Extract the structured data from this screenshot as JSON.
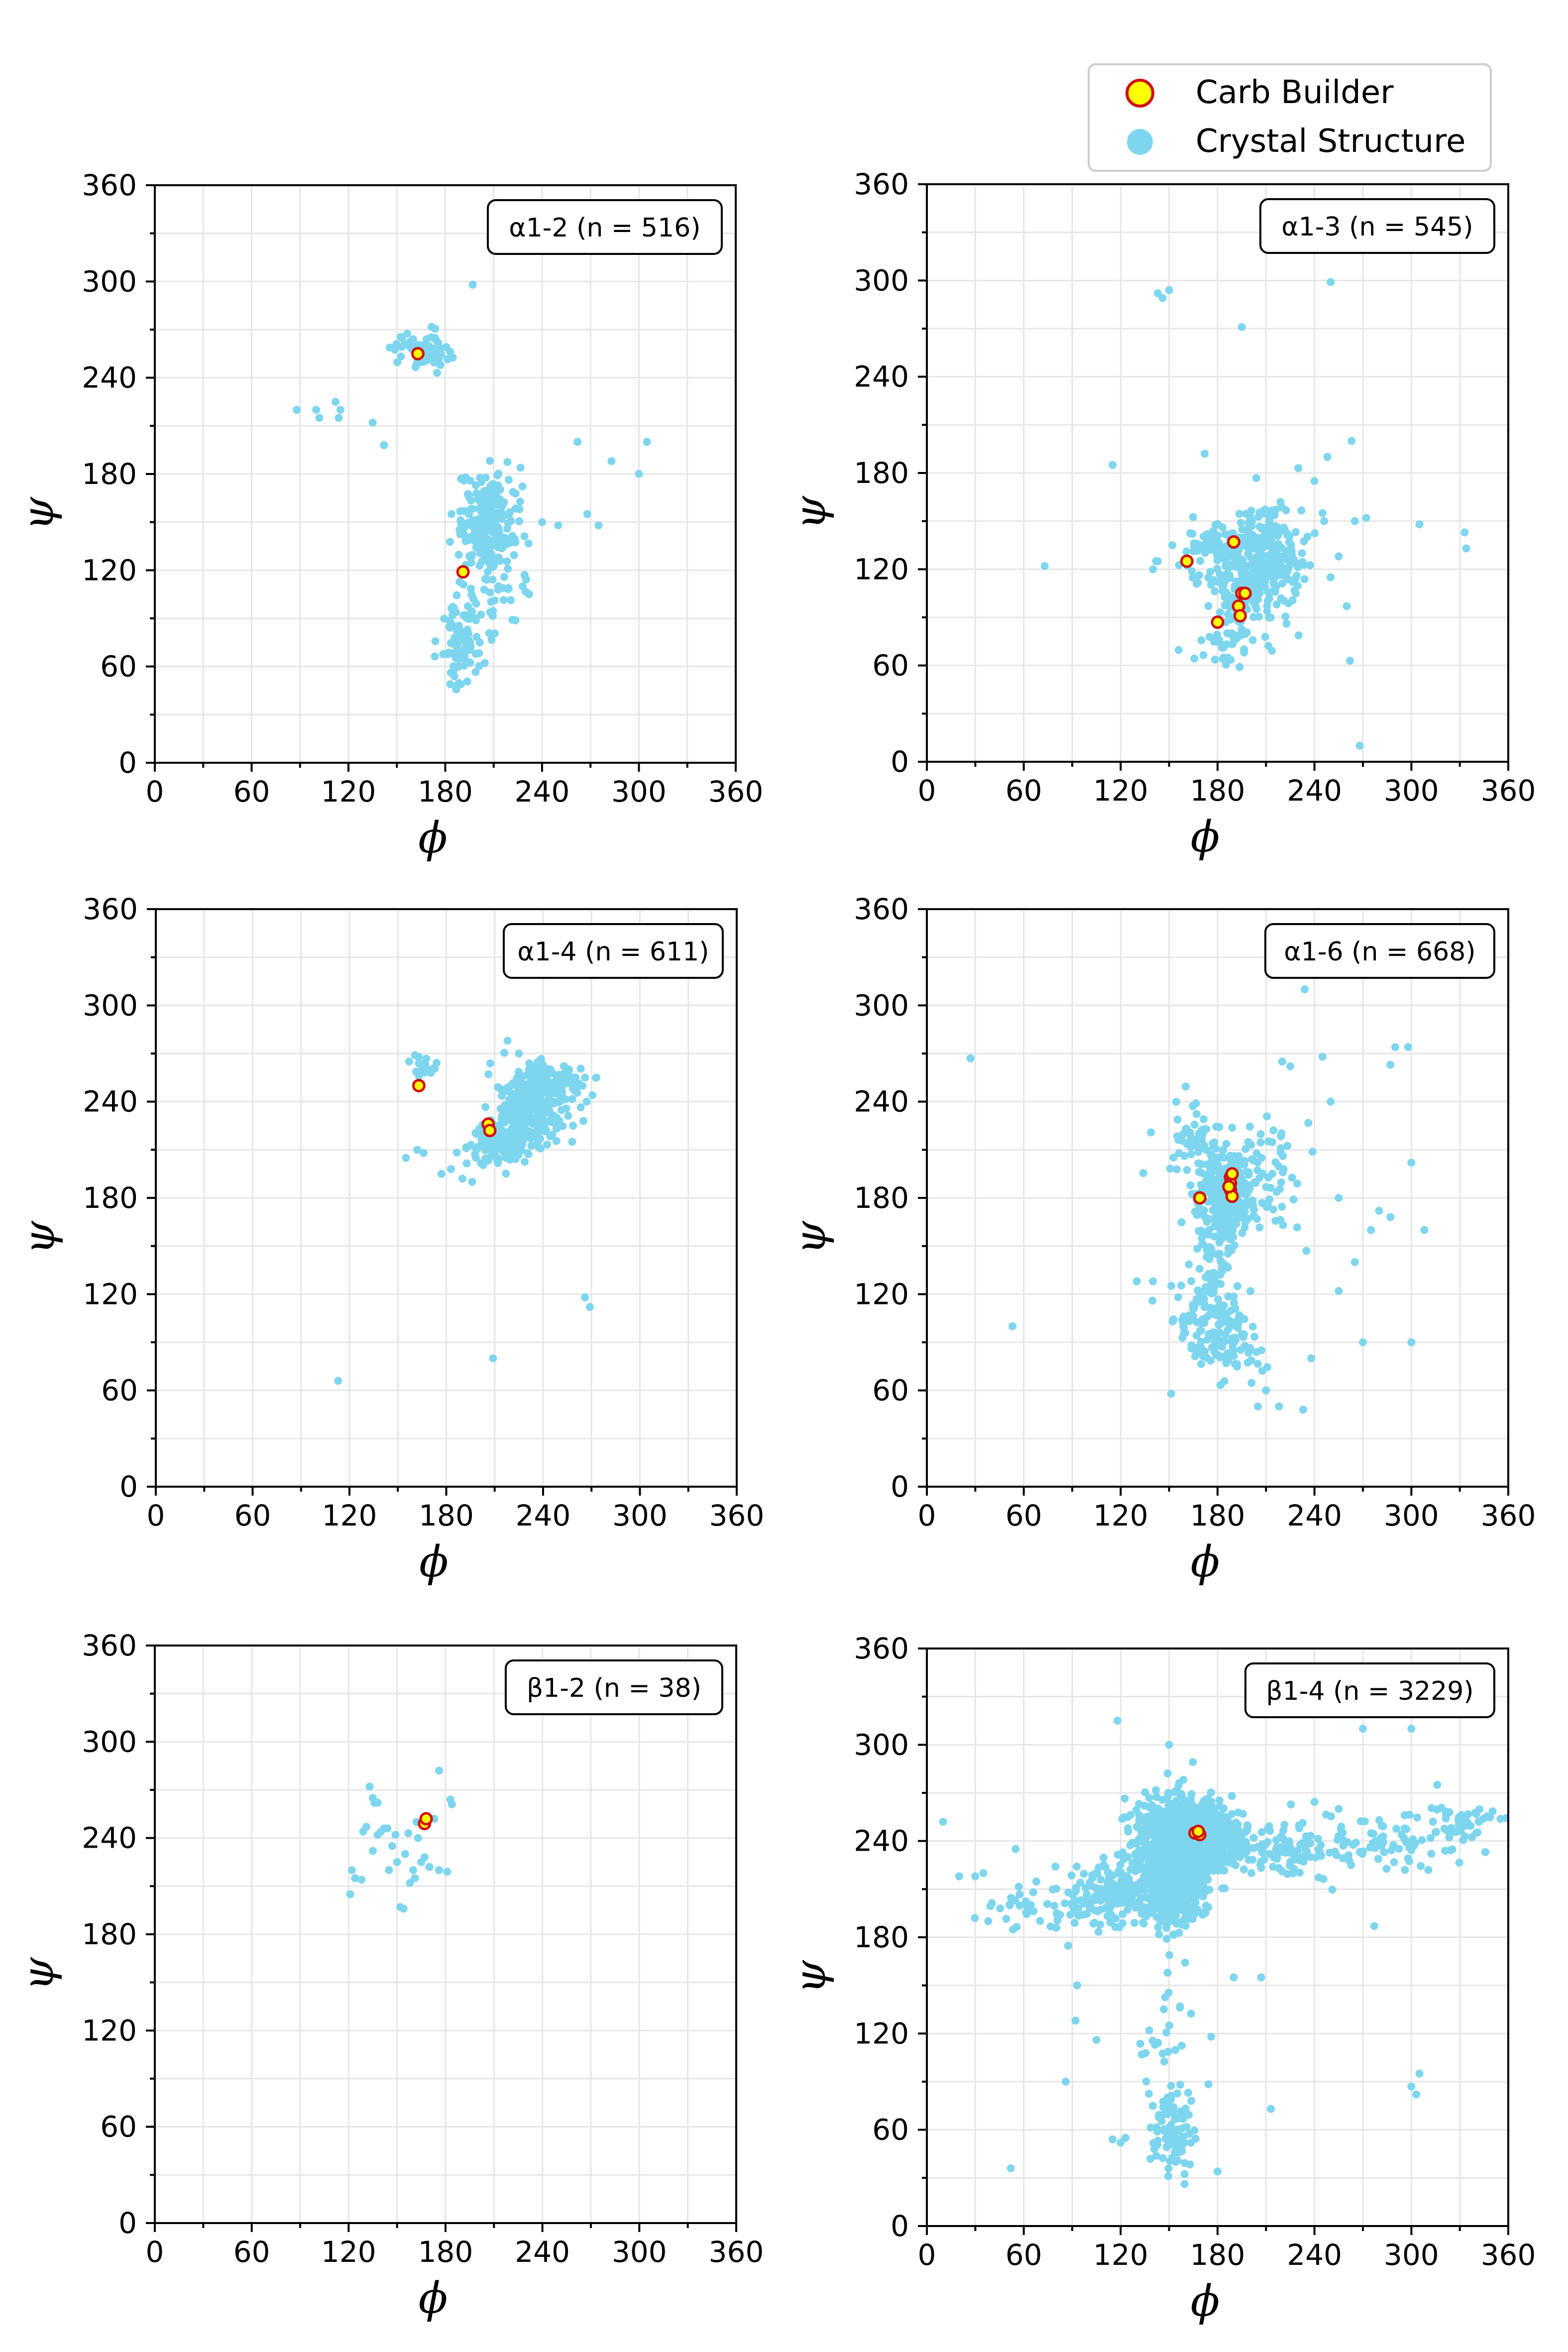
{
  "legend": {
    "items": [
      {
        "label": "Carb Builder",
        "face": "#ffff00",
        "edge": "#d01010"
      },
      {
        "label": "Crystal Structure",
        "face": "#7dd6ee",
        "edge": "#7dd6ee"
      }
    ]
  },
  "colors": {
    "crystal": "#7dd6ee",
    "carb_face": "#ffff00",
    "carb_edge": "#d01010",
    "grid": "#e6e6e6"
  },
  "chart_data": [
    {
      "type": "scatter",
      "label": "α1-2 (n = 516)",
      "xlabel": "ϕ",
      "ylabel": "ψ",
      "xlim": [
        0,
        360
      ],
      "ylim": [
        0,
        360
      ],
      "ticks": [
        0,
        60,
        120,
        180,
        240,
        300,
        360
      ],
      "grid": true,
      "clusters": [
        {
          "cx": 166,
          "cy": 258,
          "sx": 9,
          "sy": 6,
          "n": 70
        },
        {
          "cx": 205,
          "cy": 150,
          "sx": 8,
          "sy": 14,
          "n": 220
        },
        {
          "cx": 190,
          "cy": 75,
          "sx": 7,
          "sy": 14,
          "n": 90
        },
        {
          "cx": 210,
          "cy": 125,
          "sx": 12,
          "sy": 22,
          "n": 60
        }
      ],
      "outliers": [
        [
          88,
          220
        ],
        [
          100,
          220
        ],
        [
          102,
          215
        ],
        [
          112,
          225
        ],
        [
          115,
          220
        ],
        [
          114,
          215
        ],
        [
          135,
          212
        ],
        [
          142,
          198
        ],
        [
          197,
          298
        ],
        [
          262,
          200
        ],
        [
          283,
          188
        ],
        [
          305,
          200
        ],
        [
          300,
          180
        ],
        [
          268,
          155
        ],
        [
          275,
          148
        ],
        [
          240,
          150
        ],
        [
          250,
          148
        ],
        [
          228,
          110
        ],
        [
          232,
          105
        ],
        [
          226,
          158
        ],
        [
          196,
          128
        ],
        [
          213,
          110
        ]
      ],
      "carb": [
        [
          163,
          255
        ],
        [
          191,
          119
        ]
      ]
    },
    {
      "type": "scatter",
      "label": "α1-3 (n = 545)",
      "xlabel": "ϕ",
      "ylabel": "ψ",
      "xlim": [
        0,
        360
      ],
      "ylim": [
        0,
        360
      ],
      "ticks": [
        0,
        60,
        120,
        180,
        240,
        300,
        360
      ],
      "grid": true,
      "clusters": [
        {
          "cx": 195,
          "cy": 110,
          "sx": 12,
          "sy": 15,
          "n": 220
        },
        {
          "cx": 208,
          "cy": 140,
          "sx": 9,
          "sy": 10,
          "n": 90
        },
        {
          "cx": 175,
          "cy": 135,
          "sx": 10,
          "sy": 8,
          "n": 50
        },
        {
          "cx": 185,
          "cy": 72,
          "sx": 9,
          "sy": 6,
          "n": 30
        },
        {
          "cx": 220,
          "cy": 125,
          "sx": 10,
          "sy": 12,
          "n": 70
        }
      ],
      "outliers": [
        [
          143,
          292
        ],
        [
          146,
          289
        ],
        [
          150,
          294
        ],
        [
          195,
          271
        ],
        [
          250,
          299
        ],
        [
          115,
          185
        ],
        [
          172,
          192
        ],
        [
          73,
          122
        ],
        [
          230,
          183
        ],
        [
          248,
          190
        ],
        [
          263,
          200
        ],
        [
          246,
          150
        ],
        [
          265,
          150
        ],
        [
          272,
          152
        ],
        [
          305,
          148
        ],
        [
          333,
          143
        ],
        [
          334,
          133
        ],
        [
          255,
          128
        ],
        [
          250,
          115
        ],
        [
          260,
          97
        ],
        [
          262,
          63
        ],
        [
          268,
          10
        ],
        [
          140,
          120
        ],
        [
          143,
          125
        ],
        [
          152,
          135
        ],
        [
          240,
          175
        ],
        [
          245,
          155
        ]
      ],
      "carb": [
        [
          161,
          125
        ],
        [
          190,
          137
        ],
        [
          180,
          87
        ],
        [
          193,
          97
        ],
        [
          195,
          105
        ],
        [
          194,
          91
        ],
        [
          197,
          105
        ]
      ]
    },
    {
      "type": "scatter",
      "label": "α1-4 (n = 611)",
      "xlabel": "ϕ",
      "ylabel": "ψ",
      "xlim": [
        0,
        360
      ],
      "ylim": [
        0,
        360
      ],
      "ticks": [
        0,
        60,
        120,
        180,
        240,
        300,
        360
      ],
      "grid": true,
      "clusters": [
        {
          "cx": 232,
          "cy": 237,
          "sx": 10,
          "sy": 12,
          "n": 250
        },
        {
          "cx": 212,
          "cy": 213,
          "sx": 10,
          "sy": 6,
          "n": 130
        },
        {
          "cx": 248,
          "cy": 254,
          "sx": 8,
          "sy": 5,
          "n": 80
        },
        {
          "cx": 167,
          "cy": 262,
          "sx": 4,
          "sy": 3,
          "n": 20
        }
      ],
      "outliers": [
        [
          157,
          265
        ],
        [
          163,
          264
        ],
        [
          155,
          205
        ],
        [
          162,
          210
        ],
        [
          166,
          208
        ],
        [
          177,
          195
        ],
        [
          183,
          198
        ],
        [
          190,
          192
        ],
        [
          196,
          190
        ],
        [
          262,
          250
        ],
        [
          266,
          255
        ],
        [
          267,
          240
        ],
        [
          265,
          228
        ],
        [
          266,
          118
        ],
        [
          269,
          112
        ],
        [
          113,
          66
        ],
        [
          209,
          80
        ],
        [
          218,
          278
        ],
        [
          225,
          270
        ],
        [
          258,
          215
        ],
        [
          273,
          255
        ]
      ],
      "carb": [
        [
          163,
          250
        ],
        [
          206,
          226
        ],
        [
          207,
          222
        ]
      ]
    },
    {
      "type": "scatter",
      "label": "α1-6 (n = 668)",
      "xlabel": "ϕ",
      "ylabel": "ψ",
      "xlim": [
        0,
        360
      ],
      "ylim": [
        0,
        360
      ],
      "ticks": [
        0,
        60,
        120,
        180,
        240,
        300,
        360
      ],
      "grid": true,
      "clusters": [
        {
          "cx": 185,
          "cy": 180,
          "sx": 10,
          "sy": 15,
          "n": 330
        },
        {
          "cx": 180,
          "cy": 95,
          "sx": 13,
          "sy": 13,
          "n": 140
        },
        {
          "cx": 178,
          "cy": 130,
          "sx": 9,
          "sy": 12,
          "n": 50
        },
        {
          "cx": 165,
          "cy": 215,
          "sx": 9,
          "sy": 15,
          "n": 50
        },
        {
          "cx": 210,
          "cy": 195,
          "sx": 12,
          "sy": 18,
          "n": 50
        }
      ],
      "outliers": [
        [
          27,
          267
        ],
        [
          53,
          100
        ],
        [
          130,
          128
        ],
        [
          140,
          128
        ],
        [
          234,
          310
        ],
        [
          220,
          265
        ],
        [
          225,
          262
        ],
        [
          290,
          274
        ],
        [
          298,
          274
        ],
        [
          287,
          263
        ],
        [
          245,
          268
        ],
        [
          250,
          240
        ],
        [
          300,
          202
        ],
        [
          308,
          160
        ],
        [
          280,
          172
        ],
        [
          287,
          168
        ],
        [
          275,
          160
        ],
        [
          265,
          140
        ],
        [
          255,
          122
        ],
        [
          270,
          90
        ],
        [
          300,
          90
        ],
        [
          235,
          147
        ],
        [
          238,
          80
        ],
        [
          205,
          50
        ],
        [
          218,
          50
        ],
        [
          233,
          48
        ],
        [
          210,
          60
        ],
        [
          255,
          180
        ]
      ],
      "carb": [
        [
          169,
          180
        ],
        [
          188,
          193
        ],
        [
          188,
          189
        ],
        [
          188,
          185
        ],
        [
          189,
          181
        ],
        [
          189,
          195
        ],
        [
          187,
          187
        ]
      ]
    },
    {
      "type": "scatter",
      "label": "β1-2 (n = 38)",
      "xlabel": "ϕ",
      "ylabel": "ψ",
      "xlim": [
        0,
        360
      ],
      "ylim": [
        0,
        360
      ],
      "ticks": [
        0,
        60,
        120,
        180,
        240,
        300,
        360
      ],
      "grid": true,
      "clusters": [],
      "outliers": [
        [
          121,
          205
        ],
        [
          122,
          220
        ],
        [
          124,
          215
        ],
        [
          128,
          214
        ],
        [
          129,
          244
        ],
        [
          131,
          247
        ],
        [
          133,
          272
        ],
        [
          135,
          265
        ],
        [
          136,
          262
        ],
        [
          138,
          262
        ],
        [
          140,
          244
        ],
        [
          142,
          246
        ],
        [
          144,
          246
        ],
        [
          149,
          242
        ],
        [
          152,
          197
        ],
        [
          154,
          196
        ],
        [
          158,
          212
        ],
        [
          160,
          220
        ],
        [
          161,
          215
        ],
        [
          165,
          225
        ],
        [
          167,
          228
        ],
        [
          170,
          222
        ],
        [
          176,
          220
        ],
        [
          181,
          219
        ],
        [
          176,
          282
        ],
        [
          183,
          264
        ],
        [
          184,
          261
        ],
        [
          147,
          235
        ],
        [
          157,
          243
        ],
        [
          163,
          240
        ],
        [
          135,
          232
        ],
        [
          145,
          220
        ],
        [
          150,
          225
        ],
        [
          155,
          230
        ],
        [
          138,
          242
        ],
        [
          162,
          250
        ],
        [
          168,
          248
        ],
        [
          173,
          252
        ]
      ],
      "carb": [
        [
          167,
          249
        ],
        [
          168,
          252
        ]
      ]
    },
    {
      "type": "scatter",
      "label": "β1-4 (n = 3229)",
      "xlabel": "ϕ",
      "ylabel": "ψ",
      "xlim": [
        0,
        360
      ],
      "ylim": [
        0,
        360
      ],
      "ticks": [
        0,
        60,
        120,
        180,
        240,
        300,
        360
      ],
      "grid": true,
      "clusters": [
        {
          "cx": 152,
          "cy": 225,
          "sx": 10,
          "sy": 16,
          "n": 1100
        },
        {
          "cx": 160,
          "cy": 248,
          "sx": 14,
          "sy": 10,
          "n": 500
        },
        {
          "cx": 183,
          "cy": 238,
          "sx": 10,
          "sy": 8,
          "n": 150
        },
        {
          "cx": 118,
          "cy": 208,
          "sx": 14,
          "sy": 10,
          "n": 140
        },
        {
          "cx": 80,
          "cy": 198,
          "sx": 20,
          "sy": 8,
          "n": 50
        },
        {
          "cx": 225,
          "cy": 235,
          "sx": 22,
          "sy": 10,
          "n": 110
        },
        {
          "cx": 290,
          "cy": 240,
          "sx": 22,
          "sy": 8,
          "n": 60
        },
        {
          "cx": 330,
          "cy": 252,
          "sx": 14,
          "sy": 6,
          "n": 40
        },
        {
          "cx": 150,
          "cy": 60,
          "sx": 8,
          "sy": 14,
          "n": 90
        },
        {
          "cx": 148,
          "cy": 125,
          "sx": 8,
          "sy": 18,
          "n": 25
        }
      ],
      "outliers": [
        [
          10,
          252
        ],
        [
          20,
          218
        ],
        [
          30,
          218
        ],
        [
          35,
          220
        ],
        [
          38,
          190
        ],
        [
          55,
          235
        ],
        [
          52,
          36
        ],
        [
          86,
          90
        ],
        [
          93,
          150
        ],
        [
          92,
          128
        ],
        [
          105,
          116
        ],
        [
          115,
          54
        ],
        [
          120,
          52
        ],
        [
          123,
          55
        ],
        [
          118,
          315
        ],
        [
          150,
          300
        ],
        [
          190,
          155
        ],
        [
          207,
          155
        ],
        [
          213,
          73
        ],
        [
          176,
          118
        ],
        [
          180,
          34
        ],
        [
          270,
          310
        ],
        [
          300,
          310
        ],
        [
          305,
          95
        ],
        [
          303,
          82
        ],
        [
          300,
          87
        ],
        [
          316,
          275
        ],
        [
          255,
          260
        ],
        [
          296,
          222
        ],
        [
          277,
          187
        ]
      ],
      "carb": [
        [
          166,
          245
        ],
        [
          169,
          244
        ],
        [
          168,
          246
        ]
      ]
    }
  ]
}
